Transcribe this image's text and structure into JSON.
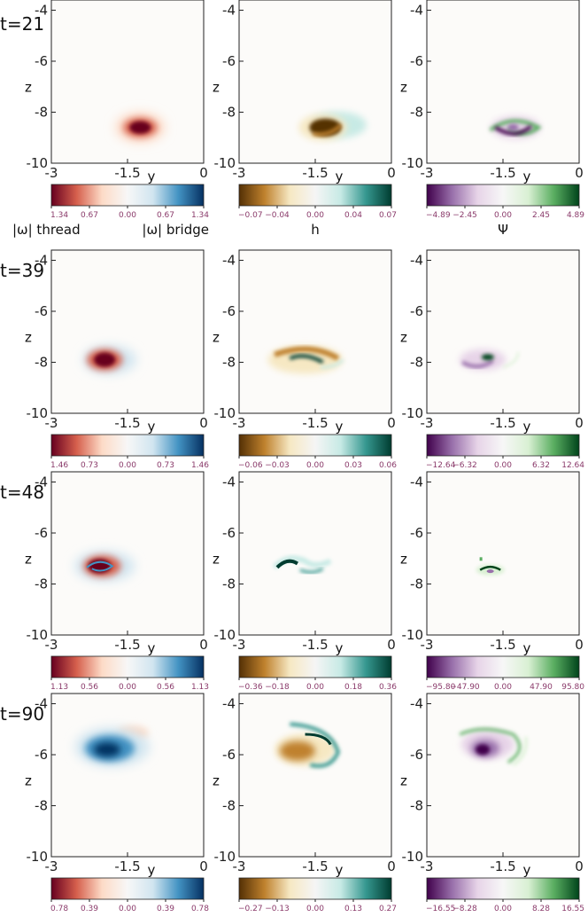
{
  "figure": {
    "axis_x_label": "y",
    "axis_y_label": "z",
    "x_ticks": [
      "-3",
      "-1.5",
      "0"
    ],
    "y_ticks": [
      "-4",
      "-6",
      "-8",
      "-10"
    ]
  },
  "colors": {
    "omega": [
      "#67001f",
      "#d6604d",
      "#fddbc7",
      "#f7f7f7",
      "#d1e5f0",
      "#4393c3",
      "#053061"
    ],
    "h": [
      "#543005",
      "#bf812d",
      "#f6e8c3",
      "#f5f5f5",
      "#c7eae5",
      "#35978f",
      "#003c30"
    ],
    "psi": [
      "#40004b",
      "#9970ab",
      "#e7d4e8",
      "#f7f7f7",
      "#d9f0d3",
      "#5aae61",
      "#00441b"
    ],
    "background": "#fcfbf9",
    "tick_label_color": "#8a3a6a"
  },
  "colorbar_names": {
    "omega_left": "|ω| thread",
    "omega_right": "|ω| bridge",
    "h": "h",
    "psi": "Ψ"
  },
  "chart_data": [
    {
      "type": "heatmap",
      "time_label": "t=21",
      "variable": "|ω|",
      "colormap": "omega",
      "xlim": [
        -3,
        0
      ],
      "ylim": [
        -10,
        -3.6
      ],
      "colorbar_ticks": [
        "1.34",
        "0.67",
        "0.00",
        "0.67",
        "1.34"
      ]
    },
    {
      "type": "heatmap",
      "time_label": "t=21",
      "variable": "h",
      "colormap": "h",
      "xlim": [
        -3,
        0
      ],
      "ylim": [
        -10,
        -3.6
      ],
      "colorbar_ticks": [
        "−0.07",
        "−0.04",
        "0.00",
        "0.04",
        "0.07"
      ]
    },
    {
      "type": "heatmap",
      "time_label": "t=21",
      "variable": "Ψ",
      "colormap": "psi",
      "xlim": [
        -3,
        0
      ],
      "ylim": [
        -10,
        -3.6
      ],
      "colorbar_ticks": [
        "−4.89",
        "−2.45",
        "0.00",
        "2.45",
        "4.89"
      ]
    },
    {
      "type": "heatmap",
      "time_label": "t=39",
      "variable": "|ω|",
      "colormap": "omega",
      "xlim": [
        -3,
        0
      ],
      "ylim": [
        -10,
        -3.6
      ],
      "colorbar_ticks": [
        "1.46",
        "0.73",
        "0.00",
        "0.73",
        "1.46"
      ]
    },
    {
      "type": "heatmap",
      "time_label": "t=39",
      "variable": "h",
      "colormap": "h",
      "xlim": [
        -3,
        0
      ],
      "ylim": [
        -10,
        -3.6
      ],
      "colorbar_ticks": [
        "−0.06",
        "−0.03",
        "0.00",
        "0.03",
        "0.06"
      ]
    },
    {
      "type": "heatmap",
      "time_label": "t=39",
      "variable": "Ψ",
      "colormap": "psi",
      "xlim": [
        -3,
        0
      ],
      "ylim": [
        -10,
        -3.6
      ],
      "colorbar_ticks": [
        "−12.64",
        "−6.32",
        "0.00",
        "6.32",
        "12.64"
      ]
    },
    {
      "type": "heatmap",
      "time_label": "t=48",
      "variable": "|ω|",
      "colormap": "omega",
      "xlim": [
        -3,
        0
      ],
      "ylim": [
        -10,
        -3.6
      ],
      "colorbar_ticks": [
        "1.13",
        "0.56",
        "0.00",
        "0.56",
        "1.13"
      ]
    },
    {
      "type": "heatmap",
      "time_label": "t=48",
      "variable": "h",
      "colormap": "h",
      "xlim": [
        -3,
        0
      ],
      "ylim": [
        -10,
        -3.6
      ],
      "colorbar_ticks": [
        "−0.36",
        "−0.18",
        "0.00",
        "0.18",
        "0.36"
      ]
    },
    {
      "type": "heatmap",
      "time_label": "t=48",
      "variable": "Ψ",
      "colormap": "psi",
      "xlim": [
        -3,
        0
      ],
      "ylim": [
        -10,
        -3.6
      ],
      "colorbar_ticks": [
        "−95.80",
        "−47.90",
        "0.00",
        "47.90",
        "95.80"
      ]
    },
    {
      "type": "heatmap",
      "time_label": "t=90",
      "variable": "|ω|",
      "colormap": "omega",
      "xlim": [
        -3,
        0
      ],
      "ylim": [
        -10,
        -3.6
      ],
      "colorbar_ticks": [
        "0.78",
        "0.39",
        "0.00",
        "0.39",
        "0.78"
      ]
    },
    {
      "type": "heatmap",
      "time_label": "t=90",
      "variable": "h",
      "colormap": "h",
      "xlim": [
        -3,
        0
      ],
      "ylim": [
        -10,
        -3.6
      ],
      "colorbar_ticks": [
        "−0.27",
        "−0.13",
        "0.00",
        "0.13",
        "0.27"
      ]
    },
    {
      "type": "heatmap",
      "time_label": "t=90",
      "variable": "Ψ",
      "colormap": "psi",
      "xlim": [
        -3,
        0
      ],
      "ylim": [
        -10,
        -3.6
      ],
      "colorbar_ticks": [
        "−16.55",
        "−8.28",
        "0.00",
        "8.28",
        "16.55"
      ]
    }
  ]
}
